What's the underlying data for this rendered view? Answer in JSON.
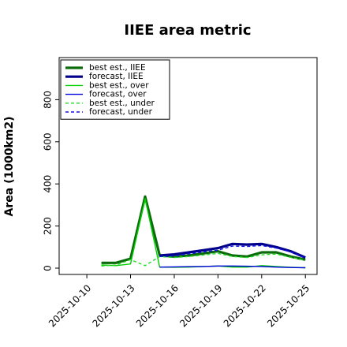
{
  "chart_data": {
    "type": "line",
    "title": "IIEE area metric",
    "xlabel": "",
    "ylabel": "Area (1000km2)",
    "ylim": [
      -30,
      1000
    ],
    "ytick_values": [
      0,
      200,
      400,
      600,
      800
    ],
    "ytick_labels": [
      "0",
      "200",
      "400",
      "600",
      "800"
    ],
    "xtick_values": [
      1,
      4,
      7,
      10,
      13,
      16
    ],
    "xtick_labels": [
      "2025-10-10",
      "2025-10-13",
      "2025-10-16",
      "2025-10-19",
      "2025-10-22",
      "2025-10-25"
    ],
    "xtick_colors": [
      "#000000",
      "#000000",
      "#2e8b22",
      "#000000",
      "#000000",
      "#000000"
    ],
    "xlim": [
      -0.9,
      16.8
    ],
    "grid": false,
    "legend_position": "upper-left",
    "series": [
      {
        "name": "best est., IIEE",
        "color": "#0a6b0a",
        "width": 3.2,
        "dash": "",
        "x": [
          2,
          3,
          4,
          5,
          6,
          7,
          8,
          9,
          10,
          11,
          12,
          13,
          14,
          15,
          16
        ],
        "y": [
          25,
          25,
          45,
          340,
          60,
          55,
          60,
          70,
          80,
          60,
          55,
          75,
          75,
          55,
          40
        ]
      },
      {
        "name": "forecast, IIEE",
        "color": "#00008b",
        "width": 3.2,
        "dash": "",
        "x": [
          6,
          7,
          8,
          9,
          10,
          11,
          12,
          13,
          14,
          15,
          16
        ],
        "y": [
          60,
          65,
          75,
          85,
          95,
          115,
          112,
          115,
          100,
          80,
          50
        ]
      },
      {
        "name": "best est., over",
        "color": "#00d000",
        "width": 1.4,
        "dash": "",
        "x": [
          2,
          3,
          4,
          5,
          6,
          7,
          8,
          9,
          10,
          11,
          12,
          13,
          14,
          15,
          16
        ],
        "y": [
          15,
          12,
          20,
          330,
          5,
          4,
          5,
          8,
          10,
          5,
          5,
          12,
          8,
          4,
          2
        ]
      },
      {
        "name": "forecast, over",
        "color": "#0000e0",
        "width": 1.4,
        "dash": "",
        "x": [
          6,
          7,
          8,
          9,
          10,
          11,
          12,
          13,
          14,
          15,
          16
        ],
        "y": [
          5,
          6,
          7,
          8,
          10,
          10,
          9,
          8,
          5,
          3,
          2
        ]
      },
      {
        "name": "best est., under",
        "color": "#22dd22",
        "width": 1.4,
        "dash": "4,3",
        "x": [
          2,
          3,
          4,
          5,
          6,
          7,
          8,
          9,
          10,
          11,
          12,
          13,
          14,
          15,
          16
        ],
        "y": [
          10,
          15,
          40,
          12,
          55,
          50,
          55,
          62,
          70,
          55,
          50,
          63,
          67,
          51,
          38
        ]
      },
      {
        "name": "forecast, under",
        "color": "#1010ee",
        "width": 1.4,
        "dash": "4,3",
        "x": [
          6,
          7,
          8,
          9,
          10,
          11,
          12,
          13,
          14,
          15,
          16
        ],
        "y": [
          55,
          58,
          68,
          77,
          85,
          105,
          103,
          107,
          95,
          77,
          48
        ]
      }
    ]
  }
}
